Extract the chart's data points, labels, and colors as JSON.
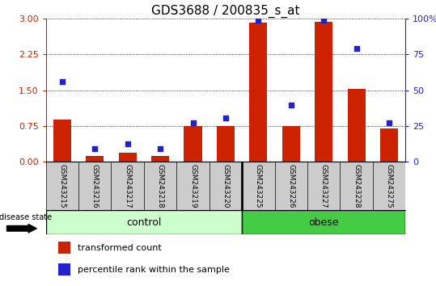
{
  "title": "GDS3688 / 200835_s_at",
  "samples": [
    "GSM243215",
    "GSM243216",
    "GSM243217",
    "GSM243218",
    "GSM243219",
    "GSM243220",
    "GSM243225",
    "GSM243226",
    "GSM243227",
    "GSM243228",
    "GSM243275"
  ],
  "transformed_count": [
    0.88,
    0.12,
    0.18,
    0.12,
    0.75,
    0.75,
    2.92,
    0.75,
    2.93,
    1.52,
    0.7
  ],
  "percentile_rank": [
    1.67,
    0.27,
    0.37,
    0.27,
    0.82,
    0.92,
    2.97,
    1.18,
    2.97,
    2.37,
    0.82
  ],
  "groups": [
    "control",
    "control",
    "control",
    "control",
    "control",
    "control",
    "obese",
    "obese",
    "obese",
    "obese",
    "obese"
  ],
  "n_control": 6,
  "n_obese": 5,
  "ylim_left": [
    0,
    3
  ],
  "yticks_left": [
    0,
    0.75,
    1.5,
    2.25,
    3
  ],
  "ytick_labels_right": [
    "0",
    "25",
    "50",
    "75",
    "100%"
  ],
  "bar_color": "#cc2200",
  "dot_color": "#2222cc",
  "control_color": "#ccffcc",
  "obese_color": "#44cc44",
  "label_bg_color": "#cccccc",
  "legend_bar": "transformed count",
  "legend_dot": "percentile rank within the sample",
  "title_fontsize": 11,
  "tick_fontsize": 8,
  "label_fontsize": 6.5,
  "group_fontsize": 9,
  "legend_fontsize": 8
}
